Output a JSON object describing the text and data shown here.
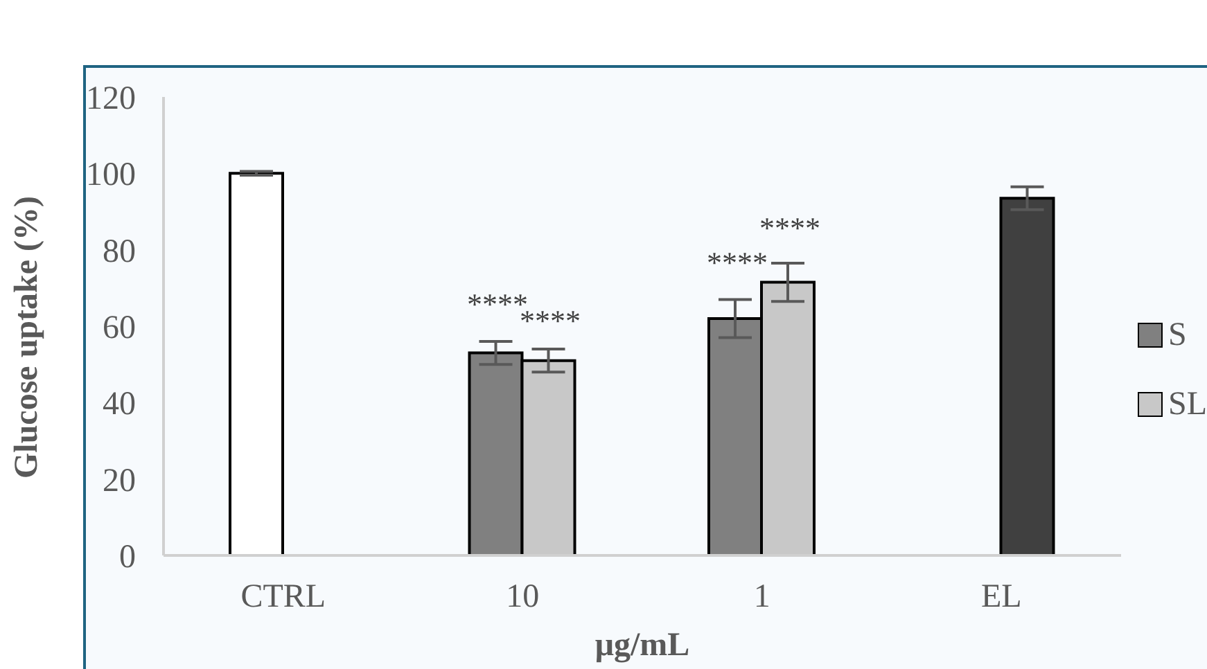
{
  "chart_data": {
    "type": "bar",
    "ylabel": "Glucose uptake (%)",
    "xlabel": "μg/mL",
    "categories": [
      "CTRL",
      "10",
      "1",
      "EL"
    ],
    "series": [
      {
        "name": "S",
        "color": "#808080",
        "colors": [
          "#ffffff",
          "#808080",
          "#808080",
          null
        ],
        "values": [
          100,
          53,
          62,
          null
        ],
        "errors": [
          0.5,
          3,
          5,
          null
        ]
      },
      {
        "name": "SL",
        "color": "#c8c8c8",
        "colors": [
          null,
          "#c8c8c8",
          "#c8c8c8",
          "#404040"
        ],
        "values": [
          null,
          51,
          71.5,
          93.5
        ],
        "errors": [
          null,
          3,
          5,
          3
        ]
      }
    ],
    "ylim": [
      0,
      120
    ],
    "yticks": [
      0,
      20,
      40,
      60,
      80,
      100,
      120
    ],
    "grid": false,
    "legend": "right",
    "annotations": [
      "****",
      "****",
      "****",
      "****"
    ]
  }
}
